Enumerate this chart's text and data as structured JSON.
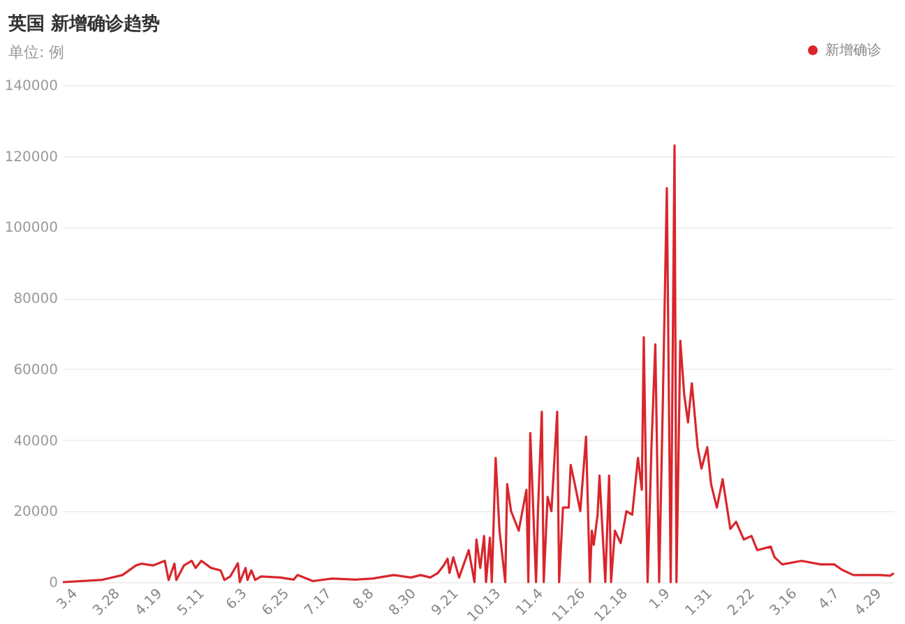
{
  "chart_data": {
    "type": "line",
    "title": "英国 新增确诊趋势",
    "subtitle": "单位: 例",
    "x": [
      "2020-02-27",
      "2020-03-18",
      "2020-03-29",
      "2020-04-05",
      "2020-04-08",
      "2020-04-14",
      "2020-04-20",
      "2020-04-22",
      "2020-04-25",
      "2020-04-26",
      "2020-04-30",
      "2020-05-04",
      "2020-05-06",
      "2020-05-09",
      "2020-05-14",
      "2020-05-19",
      "2020-05-21",
      "2020-05-24",
      "2020-05-28",
      "2020-05-29",
      "2020-06-01",
      "2020-06-02",
      "2020-06-04",
      "2020-06-06",
      "2020-06-09",
      "2020-06-19",
      "2020-06-26",
      "2020-06-28",
      "2020-07-06",
      "2020-07-16",
      "2020-07-28",
      "2020-08-06",
      "2020-08-17",
      "2020-08-26",
      "2020-08-31",
      "2020-09-05",
      "2020-09-09",
      "2020-09-12",
      "2020-09-14",
      "2020-09-15",
      "2020-09-17",
      "2020-09-20",
      "2020-09-25",
      "2020-09-28",
      "2020-09-29",
      "2020-10-01",
      "2020-10-03",
      "2020-10-04",
      "2020-10-06",
      "2020-10-07",
      "2020-10-09",
      "2020-10-11",
      "2020-10-14",
      "2020-10-15",
      "2020-10-17",
      "2020-10-21",
      "2020-10-25",
      "2020-10-26",
      "2020-10-27",
      "2020-10-30",
      "2020-10-31",
      "2020-11-02",
      "2020-11-03",
      "2020-11-05",
      "2020-11-07",
      "2020-11-10",
      "2020-11-11",
      "2020-11-13",
      "2020-11-16",
      "2020-11-17",
      "2020-11-19",
      "2020-11-22",
      "2020-11-25",
      "2020-11-27",
      "2020-11-28",
      "2020-11-29",
      "2020-12-01",
      "2020-12-02",
      "2020-12-05",
      "2020-12-07",
      "2020-12-08",
      "2020-12-10",
      "2020-12-13",
      "2020-12-16",
      "2020-12-19",
      "2020-12-22",
      "2020-12-24",
      "2020-12-25",
      "2020-12-27",
      "2020-12-29",
      "2020-12-31",
      "2021-01-02",
      "2021-01-04",
      "2021-01-06",
      "2021-01-08",
      "2021-01-10",
      "2021-01-11",
      "2021-01-13",
      "2021-01-15",
      "2021-01-17",
      "2021-01-19",
      "2021-01-22",
      "2021-01-24",
      "2021-01-27",
      "2021-01-29",
      "2021-02-01",
      "2021-02-04",
      "2021-02-08",
      "2021-02-11",
      "2021-02-15",
      "2021-02-19",
      "2021-02-22",
      "2021-03-01",
      "2021-03-03",
      "2021-03-07",
      "2021-03-17",
      "2021-03-27",
      "2021-04-03",
      "2021-04-07",
      "2021-04-13",
      "2021-04-27",
      "2021-05-02",
      "2021-05-04"
    ],
    "series": [
      {
        "name": "新增确诊",
        "color": "#d9262c",
        "values": [
          0,
          600,
          2000,
          4700,
          5200,
          4700,
          6000,
          600,
          5200,
          600,
          4700,
          6000,
          4000,
          6000,
          4000,
          3300,
          600,
          1600,
          5300,
          0,
          4000,
          600,
          3300,
          600,
          1600,
          1300,
          700,
          2000,
          300,
          1000,
          700,
          1000,
          2000,
          1300,
          2000,
          1300,
          2600,
          4700,
          6600,
          2600,
          7000,
          1300,
          9000,
          0,
          12000,
          4000,
          13000,
          0,
          12500,
          0,
          35000,
          14500,
          0,
          27600,
          20000,
          14500,
          26000,
          0,
          42000,
          0,
          20000,
          48000,
          0,
          24000,
          20000,
          48000,
          0,
          21000,
          21000,
          33000,
          28000,
          20000,
          41000,
          0,
          14500,
          10500,
          19000,
          30000,
          0,
          30000,
          0,
          14500,
          11000,
          20000,
          19000,
          35000,
          26000,
          69000,
          0,
          38000,
          67000,
          0,
          53000,
          111000,
          0,
          123000,
          0,
          68000,
          53000,
          45000,
          56000,
          38000,
          32000,
          38000,
          27600,
          21000,
          29000,
          15000,
          17000,
          12000,
          13000,
          9000,
          10000,
          7000,
          5000,
          6000,
          5000,
          5000,
          3500,
          2000,
          2000,
          1800,
          2500
        ]
      }
    ],
    "xlim": [
      "2020-02-27",
      "2021-05-04"
    ],
    "xticks": [
      {
        "value": "2020-03-04",
        "label": "3.4"
      },
      {
        "value": "2020-03-26",
        "label": "3.28"
      },
      {
        "value": "2020-04-17",
        "label": "4.19"
      },
      {
        "value": "2020-05-09",
        "label": "5.11"
      },
      {
        "value": "2020-05-31",
        "label": "6.3"
      },
      {
        "value": "2020-06-22",
        "label": "6.25"
      },
      {
        "value": "2020-07-14",
        "label": "7.17"
      },
      {
        "value": "2020-08-05",
        "label": "8.8"
      },
      {
        "value": "2020-08-27",
        "label": "8.30"
      },
      {
        "value": "2020-09-18",
        "label": "9.21"
      },
      {
        "value": "2020-10-10",
        "label": "10.13"
      },
      {
        "value": "2020-11-01",
        "label": "11.4"
      },
      {
        "value": "2020-11-23",
        "label": "11.26"
      },
      {
        "value": "2020-12-15",
        "label": "12.18"
      },
      {
        "value": "2021-01-06",
        "label": "1.9"
      },
      {
        "value": "2021-01-28",
        "label": "1.31"
      },
      {
        "value": "2021-02-19",
        "label": "2.22"
      },
      {
        "value": "2021-03-13",
        "label": "3.16"
      },
      {
        "value": "2021-04-04",
        "label": "4.7"
      },
      {
        "value": "2021-04-26",
        "label": "4.29"
      }
    ],
    "ylim": [
      0,
      140000
    ],
    "yticks": [
      0,
      20000,
      40000,
      60000,
      80000,
      100000,
      120000,
      140000
    ],
    "grid": "y",
    "legend": "top right",
    "marker": "none",
    "line_style": "solid"
  }
}
